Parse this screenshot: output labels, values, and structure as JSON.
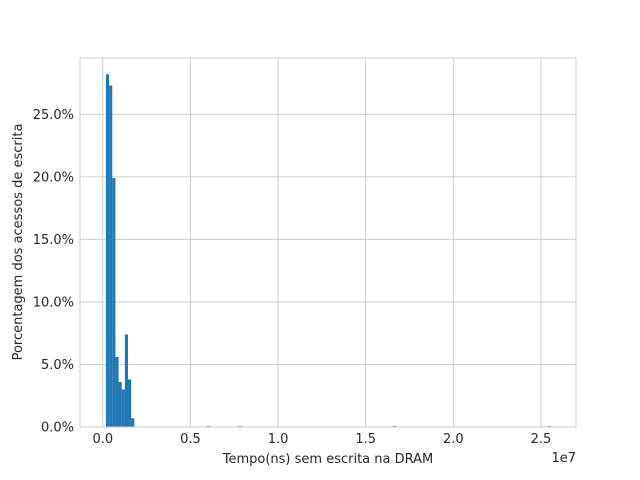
{
  "chart_data": {
    "type": "bar",
    "xlabel": "Tempo(ns) sem escrita na DRAM",
    "ylabel": "Porcentagem dos acessos de escrita",
    "x_offset_text": "1e7",
    "x_ticks": [
      0.0,
      0.5,
      1.0,
      1.5,
      2.0,
      2.5
    ],
    "x_tick_labels": [
      "0.0",
      "0.5",
      "1.0",
      "1.5",
      "2.0",
      "2.5"
    ],
    "y_ticks": [
      0,
      5,
      10,
      15,
      20,
      25
    ],
    "y_tick_labels": [
      "0.0%",
      "5.0%",
      "10.0%",
      "15.0%",
      "20.0%",
      "25.0%"
    ],
    "xlim": [
      -0.13,
      2.7
    ],
    "ylim": [
      0,
      29.5
    ],
    "grid": true,
    "bar_color": "#1f77b4",
    "x_units": "1e7 ns",
    "y_units": "percent",
    "bins": [
      {
        "x0": 0.018,
        "x1": 0.036,
        "value": 28.2
      },
      {
        "x0": 0.036,
        "x1": 0.054,
        "value": 27.3
      },
      {
        "x0": 0.054,
        "x1": 0.072,
        "value": 19.9
      },
      {
        "x0": 0.072,
        "x1": 0.09,
        "value": 5.6
      },
      {
        "x0": 0.09,
        "x1": 0.108,
        "value": 3.6
      },
      {
        "x0": 0.108,
        "x1": 0.126,
        "value": 3.0
      },
      {
        "x0": 0.126,
        "x1": 0.144,
        "value": 7.4
      },
      {
        "x0": 0.144,
        "x1": 0.162,
        "value": 3.8
      },
      {
        "x0": 0.162,
        "x1": 0.18,
        "value": 0.7
      },
      {
        "x0": 0.594,
        "x1": 0.612,
        "value": 0.08
      },
      {
        "x0": 0.774,
        "x1": 0.792,
        "value": 0.08
      },
      {
        "x0": 1.656,
        "x1": 1.674,
        "value": 0.08
      },
      {
        "x0": 2.538,
        "x1": 2.556,
        "value": 0.08
      }
    ]
  }
}
